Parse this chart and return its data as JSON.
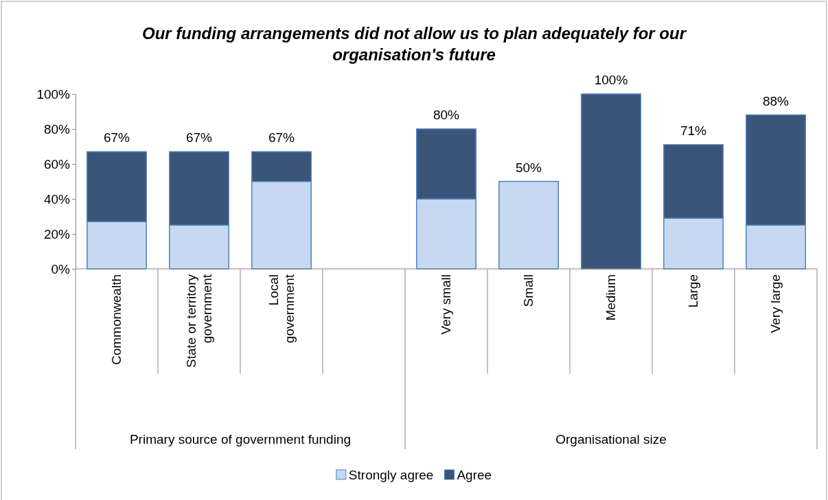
{
  "chart_data": {
    "type": "bar",
    "stacked": true,
    "title": "Our funding arrangements did not allow us to plan adequately for our organisation's future",
    "categories": [
      "Commonwealth",
      "State or territory government",
      "Local government",
      null,
      "Very small",
      "Small",
      "Medium",
      "Large",
      "Very large"
    ],
    "series": [
      {
        "name": "Strongly agree",
        "color": "#c6d9f1",
        "values": [
          27,
          25,
          50,
          null,
          40,
          50,
          0,
          29,
          25
        ]
      },
      {
        "name": "Agree",
        "color": "#3b5578",
        "values": [
          40,
          42,
          17,
          null,
          40,
          0,
          100,
          42,
          63
        ]
      }
    ],
    "totals": [
      "67%",
      "67%",
      "67%",
      null,
      "80%",
      "50%",
      "100%",
      "71%",
      "88%"
    ],
    "annotations": [
      "Primary source of government funding",
      "Organisational size"
    ],
    "ylim": [
      0,
      100
    ],
    "yticks": [
      {
        "value": 0,
        "label": "0%"
      },
      {
        "value": 20,
        "label": "20%"
      },
      {
        "value": 40,
        "label": "40%"
      },
      {
        "value": 60,
        "label": "60%"
      },
      {
        "value": 80,
        "label": "80%"
      },
      {
        "value": 100,
        "label": "100%"
      }
    ],
    "grid": false,
    "legend": "bottom"
  }
}
